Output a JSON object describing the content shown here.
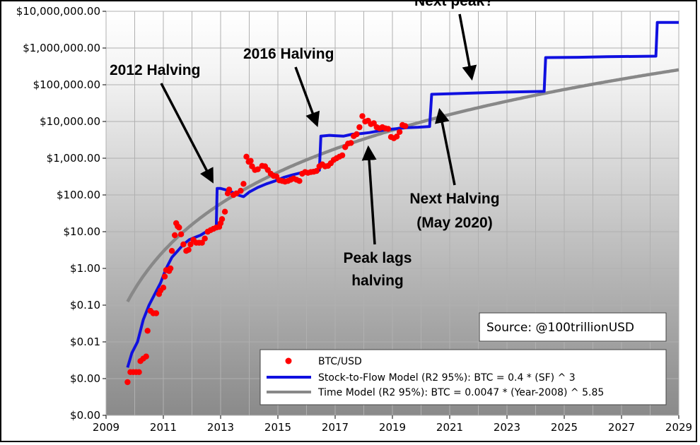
{
  "chart_data": {
    "type": "scatter",
    "x_ticks": [
      "2009",
      "2011",
      "2013",
      "2015",
      "2017",
      "2019",
      "2021",
      "2023",
      "2025",
      "2027",
      "2029"
    ],
    "xlim": [
      2009,
      2029
    ],
    "y_scale": "log",
    "ylim": [
      0.0001,
      10000000
    ],
    "y_ticks": [
      {
        "value": 0.0001,
        "label": "$0.00"
      },
      {
        "value": 0.001,
        "label": "$0.00"
      },
      {
        "value": 0.01,
        "label": "$0.01"
      },
      {
        "value": 0.1,
        "label": "$0.10"
      },
      {
        "value": 1,
        "label": "$1.00"
      },
      {
        "value": 10,
        "label": "$10.00"
      },
      {
        "value": 100,
        "label": "$100.00"
      },
      {
        "value": 1000,
        "label": "$1,000.00"
      },
      {
        "value": 10000,
        "label": "$10,000.00"
      },
      {
        "value": 100000,
        "label": "$100,000.00"
      },
      {
        "value": 1000000,
        "label": "$1,000,000.00"
      },
      {
        "value": 10000000,
        "label": "$10,000,000.00"
      }
    ],
    "grid": true,
    "legend_position": "bottom-right",
    "series": [
      {
        "name": "BTC/USD",
        "kind": "scatter",
        "color": "#ff0000",
        "points": [
          [
            2009.75,
            0.0008
          ],
          [
            2009.85,
            0.0015
          ],
          [
            2009.95,
            0.0015
          ],
          [
            2010.05,
            0.0015
          ],
          [
            2010.15,
            0.0015
          ],
          [
            2010.2,
            0.003
          ],
          [
            2010.3,
            0.0035
          ],
          [
            2010.4,
            0.004
          ],
          [
            2010.45,
            0.02
          ],
          [
            2010.55,
            0.07
          ],
          [
            2010.65,
            0.06
          ],
          [
            2010.75,
            0.06
          ],
          [
            2010.85,
            0.2
          ],
          [
            2010.9,
            0.25
          ],
          [
            2011.0,
            0.3
          ],
          [
            2011.05,
            0.6
          ],
          [
            2011.1,
            0.9
          ],
          [
            2011.2,
            0.85
          ],
          [
            2011.25,
            1.0
          ],
          [
            2011.3,
            3.0
          ],
          [
            2011.4,
            8.0
          ],
          [
            2011.45,
            17
          ],
          [
            2011.5,
            14
          ],
          [
            2011.55,
            13
          ],
          [
            2011.62,
            8.5
          ],
          [
            2011.7,
            4.5
          ],
          [
            2011.8,
            3.0
          ],
          [
            2011.88,
            3.2
          ],
          [
            2011.95,
            4.5
          ],
          [
            2012.05,
            6
          ],
          [
            2012.15,
            5
          ],
          [
            2012.25,
            5
          ],
          [
            2012.35,
            5
          ],
          [
            2012.45,
            6.5
          ],
          [
            2012.55,
            10
          ],
          [
            2012.65,
            11
          ],
          [
            2012.75,
            12
          ],
          [
            2012.85,
            13
          ],
          [
            2012.95,
            13.5
          ],
          [
            2013.0,
            17
          ],
          [
            2013.05,
            22
          ],
          [
            2013.15,
            35
          ],
          [
            2013.25,
            110
          ],
          [
            2013.3,
            140
          ],
          [
            2013.45,
            100
          ],
          [
            2013.55,
            110
          ],
          [
            2013.7,
            130
          ],
          [
            2013.8,
            200
          ],
          [
            2013.9,
            1100
          ],
          [
            2013.98,
            800
          ],
          [
            2014.05,
            850
          ],
          [
            2014.1,
            600
          ],
          [
            2014.2,
            480
          ],
          [
            2014.3,
            500
          ],
          [
            2014.45,
            620
          ],
          [
            2014.55,
            600
          ],
          [
            2014.65,
            480
          ],
          [
            2014.75,
            380
          ],
          [
            2014.85,
            330
          ],
          [
            2014.95,
            320
          ],
          [
            2015.05,
            250
          ],
          [
            2015.15,
            240
          ],
          [
            2015.25,
            230
          ],
          [
            2015.35,
            240
          ],
          [
            2015.45,
            260
          ],
          [
            2015.55,
            280
          ],
          [
            2015.65,
            260
          ],
          [
            2015.75,
            240
          ],
          [
            2015.85,
            380
          ],
          [
            2015.95,
            420
          ],
          [
            2016.05,
            400
          ],
          [
            2016.15,
            420
          ],
          [
            2016.25,
            430
          ],
          [
            2016.35,
            450
          ],
          [
            2016.45,
            600
          ],
          [
            2016.55,
            680
          ],
          [
            2016.65,
            600
          ],
          [
            2016.75,
            620
          ],
          [
            2016.85,
            730
          ],
          [
            2016.95,
            900
          ],
          [
            2017.05,
            1000
          ],
          [
            2017.15,
            1100
          ],
          [
            2017.25,
            1200
          ],
          [
            2017.35,
            2000
          ],
          [
            2017.45,
            2500
          ],
          [
            2017.55,
            2600
          ],
          [
            2017.65,
            4000
          ],
          [
            2017.75,
            4500
          ],
          [
            2017.85,
            7000
          ],
          [
            2017.95,
            14000
          ],
          [
            2018.05,
            10000
          ],
          [
            2018.15,
            10500
          ],
          [
            2018.25,
            8500
          ],
          [
            2018.35,
            9000
          ],
          [
            2018.45,
            7000
          ],
          [
            2018.55,
            6500
          ],
          [
            2018.65,
            7000
          ],
          [
            2018.75,
            6500
          ],
          [
            2018.85,
            6300
          ],
          [
            2018.95,
            3800
          ],
          [
            2019.05,
            3500
          ],
          [
            2019.15,
            3900
          ],
          [
            2019.25,
            5200
          ],
          [
            2019.35,
            8000
          ],
          [
            2019.45,
            7500
          ]
        ]
      },
      {
        "name": "Stock-to-Flow Model (R2 95%): BTC = 0.4 * (SF) ^ 3",
        "kind": "line",
        "color": "#1010e0",
        "points": [
          [
            2009.75,
            0.002
          ],
          [
            2009.9,
            0.005
          ],
          [
            2010.1,
            0.01
          ],
          [
            2010.3,
            0.04
          ],
          [
            2010.5,
            0.1
          ],
          [
            2010.7,
            0.2
          ],
          [
            2010.9,
            0.4
          ],
          [
            2011.1,
            1.0
          ],
          [
            2011.3,
            2.0
          ],
          [
            2011.5,
            3.0
          ],
          [
            2011.7,
            4.5
          ],
          [
            2011.9,
            6
          ],
          [
            2012.1,
            7
          ],
          [
            2012.3,
            8
          ],
          [
            2012.5,
            10
          ],
          [
            2012.7,
            12
          ],
          [
            2012.85,
            14
          ],
          [
            2012.88,
            150
          ],
          [
            2013.0,
            150
          ],
          [
            2013.3,
            130
          ],
          [
            2013.6,
            100
          ],
          [
            2013.8,
            90
          ],
          [
            2014.0,
            120
          ],
          [
            2014.3,
            160
          ],
          [
            2014.6,
            200
          ],
          [
            2014.9,
            240
          ],
          [
            2015.2,
            300
          ],
          [
            2015.5,
            350
          ],
          [
            2015.8,
            400
          ],
          [
            2016.1,
            430
          ],
          [
            2016.45,
            470
          ],
          [
            2016.5,
            4000
          ],
          [
            2016.8,
            4200
          ],
          [
            2017.0,
            4100
          ],
          [
            2017.3,
            4000
          ],
          [
            2017.6,
            4500
          ],
          [
            2017.9,
            4700
          ],
          [
            2018.2,
            5000
          ],
          [
            2018.5,
            5500
          ],
          [
            2018.8,
            6000
          ],
          [
            2019.1,
            6300
          ],
          [
            2019.5,
            6800
          ],
          [
            2019.9,
            7000
          ],
          [
            2020.3,
            7300
          ],
          [
            2020.37,
            55000
          ],
          [
            2021.0,
            57000
          ],
          [
            2022.0,
            60000
          ],
          [
            2023.0,
            63000
          ],
          [
            2024.3,
            66000
          ],
          [
            2024.35,
            550000
          ],
          [
            2025.5,
            560000
          ],
          [
            2026.5,
            580000
          ],
          [
            2028.2,
            600000
          ],
          [
            2028.25,
            5000000
          ],
          [
            2029.0,
            5000000
          ]
        ]
      },
      {
        "name": "Time Model (R2 95%): BTC = 0.0047 * (Year-2008) ^ 5.85",
        "kind": "curve",
        "color": "#888888",
        "formula": {
          "coef": 0.0047,
          "base_year": 2008,
          "exponent": 5.85
        },
        "x_start": 2009.75,
        "x_end": 2029.0
      }
    ],
    "annotations": [
      {
        "text": "2012 Halving",
        "target": [
          2012.85,
          150
        ]
      },
      {
        "text": "2016 Halving",
        "target": [
          2016.4,
          4000
        ]
      },
      {
        "text": "Next peak?",
        "target": [
          2021.0,
          65000
        ]
      },
      {
        "text": "Next Halving",
        "text2": "(May 2020)",
        "target": [
          2020.35,
          9000
        ]
      },
      {
        "text": "Peak lags",
        "text2": "halving",
        "target": [
          2018.0,
          900
        ]
      }
    ],
    "source_label": "Source: @100trillionUSD"
  }
}
